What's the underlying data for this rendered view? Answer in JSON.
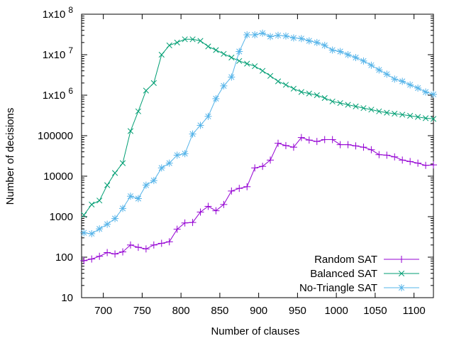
{
  "chart_data": {
    "type": "line",
    "title": "",
    "xlabel": "Number of clauses",
    "ylabel": "Number of decisions",
    "xlim": [
      672,
      1125
    ],
    "ylim": [
      10,
      100000000
    ],
    "yscale": "log",
    "grid": false,
    "legend_position": "bottom-right",
    "x_ticks": [
      {
        "value": 700,
        "label": "700"
      },
      {
        "value": 750,
        "label": "750"
      },
      {
        "value": 800,
        "label": "800"
      },
      {
        "value": 850,
        "label": "850"
      },
      {
        "value": 900,
        "label": "900"
      },
      {
        "value": 950,
        "label": "950"
      },
      {
        "value": 1000,
        "label": "1000"
      },
      {
        "value": 1050,
        "label": "1050"
      },
      {
        "value": 1100,
        "label": "1100"
      }
    ],
    "y_ticks": [
      {
        "value": 10,
        "label": "10",
        "sup": ""
      },
      {
        "value": 100,
        "label": "100",
        "sup": ""
      },
      {
        "value": 1000,
        "label": "1000",
        "sup": ""
      },
      {
        "value": 10000,
        "label": "10000",
        "sup": ""
      },
      {
        "value": 100000,
        "label": "100000",
        "sup": ""
      },
      {
        "value": 1000000,
        "label": "1x10",
        "sup": "6"
      },
      {
        "value": 10000000,
        "label": "1x10",
        "sup": "7"
      },
      {
        "value": 100000000,
        "label": "1x10",
        "sup": "8"
      }
    ],
    "series": [
      {
        "name": "Random SAT",
        "color": "#9400d3",
        "marker": "plus",
        "x": [
          675,
          685,
          695,
          705,
          715,
          725,
          735,
          745,
          755,
          765,
          775,
          785,
          795,
          805,
          815,
          825,
          835,
          845,
          855,
          865,
          875,
          885,
          895,
          905,
          915,
          925,
          935,
          945,
          955,
          965,
          975,
          985,
          995,
          1005,
          1015,
          1025,
          1035,
          1045,
          1055,
          1065,
          1075,
          1085,
          1095,
          1105,
          1115,
          1125
        ],
        "y": [
          82,
          90,
          105,
          130,
          120,
          135,
          200,
          175,
          160,
          200,
          220,
          240,
          490,
          700,
          720,
          1300,
          1800,
          1400,
          2000,
          4300,
          5000,
          5500,
          16000,
          17500,
          25000,
          65000,
          57000,
          52000,
          90000,
          78000,
          72000,
          80000,
          80000,
          60000,
          60000,
          56000,
          52000,
          45000,
          34000,
          33000,
          30000,
          25000,
          23000,
          21000,
          18500,
          19000
        ]
      },
      {
        "name": "Balanced SAT",
        "color": "#009e73",
        "marker": "cross",
        "x": [
          675,
          685,
          695,
          705,
          715,
          725,
          735,
          745,
          755,
          765,
          775,
          785,
          795,
          805,
          815,
          825,
          835,
          845,
          855,
          865,
          875,
          885,
          895,
          905,
          915,
          925,
          935,
          945,
          955,
          965,
          975,
          985,
          995,
          1005,
          1015,
          1025,
          1035,
          1045,
          1055,
          1065,
          1075,
          1085,
          1095,
          1105,
          1115,
          1125
        ],
        "y": [
          1100,
          2000,
          2500,
          6000,
          12000,
          21000,
          130000,
          400000,
          1300000,
          2000000,
          10000000,
          17000000,
          20000000,
          24000000,
          24000000,
          22000000,
          16000000,
          13000000,
          10500000,
          8500000,
          7000000,
          6000000,
          5200000,
          4000000,
          3000000,
          2200000,
          1800000,
          1450000,
          1200000,
          1100000,
          1000000,
          850000,
          700000,
          640000,
          580000,
          530000,
          480000,
          440000,
          400000,
          370000,
          350000,
          330000,
          310000,
          290000,
          270000,
          260000
        ]
      },
      {
        "name": "No-Triangle SAT",
        "color": "#56b4e9",
        "marker": "star",
        "x": [
          675,
          685,
          695,
          705,
          715,
          725,
          735,
          745,
          755,
          765,
          775,
          785,
          795,
          805,
          815,
          825,
          835,
          845,
          855,
          865,
          875,
          885,
          895,
          905,
          915,
          925,
          935,
          945,
          955,
          965,
          975,
          985,
          995,
          1005,
          1015,
          1025,
          1035,
          1045,
          1055,
          1065,
          1075,
          1085,
          1095,
          1105,
          1115,
          1125
        ],
        "y": [
          400,
          380,
          500,
          650,
          900,
          1600,
          3200,
          2800,
          6000,
          7800,
          16000,
          21000,
          33000,
          36000,
          110000,
          180000,
          300000,
          820000,
          1700000,
          2800000,
          12000000,
          31000000,
          31000000,
          34000000,
          28000000,
          30000000,
          29000000,
          26000000,
          25000000,
          22000000,
          20000000,
          17000000,
          13000000,
          12000000,
          10000000,
          8500000,
          7000000,
          5500000,
          4200000,
          3300000,
          2500000,
          2200000,
          1800000,
          1500000,
          1200000,
          1050000
        ]
      }
    ]
  }
}
